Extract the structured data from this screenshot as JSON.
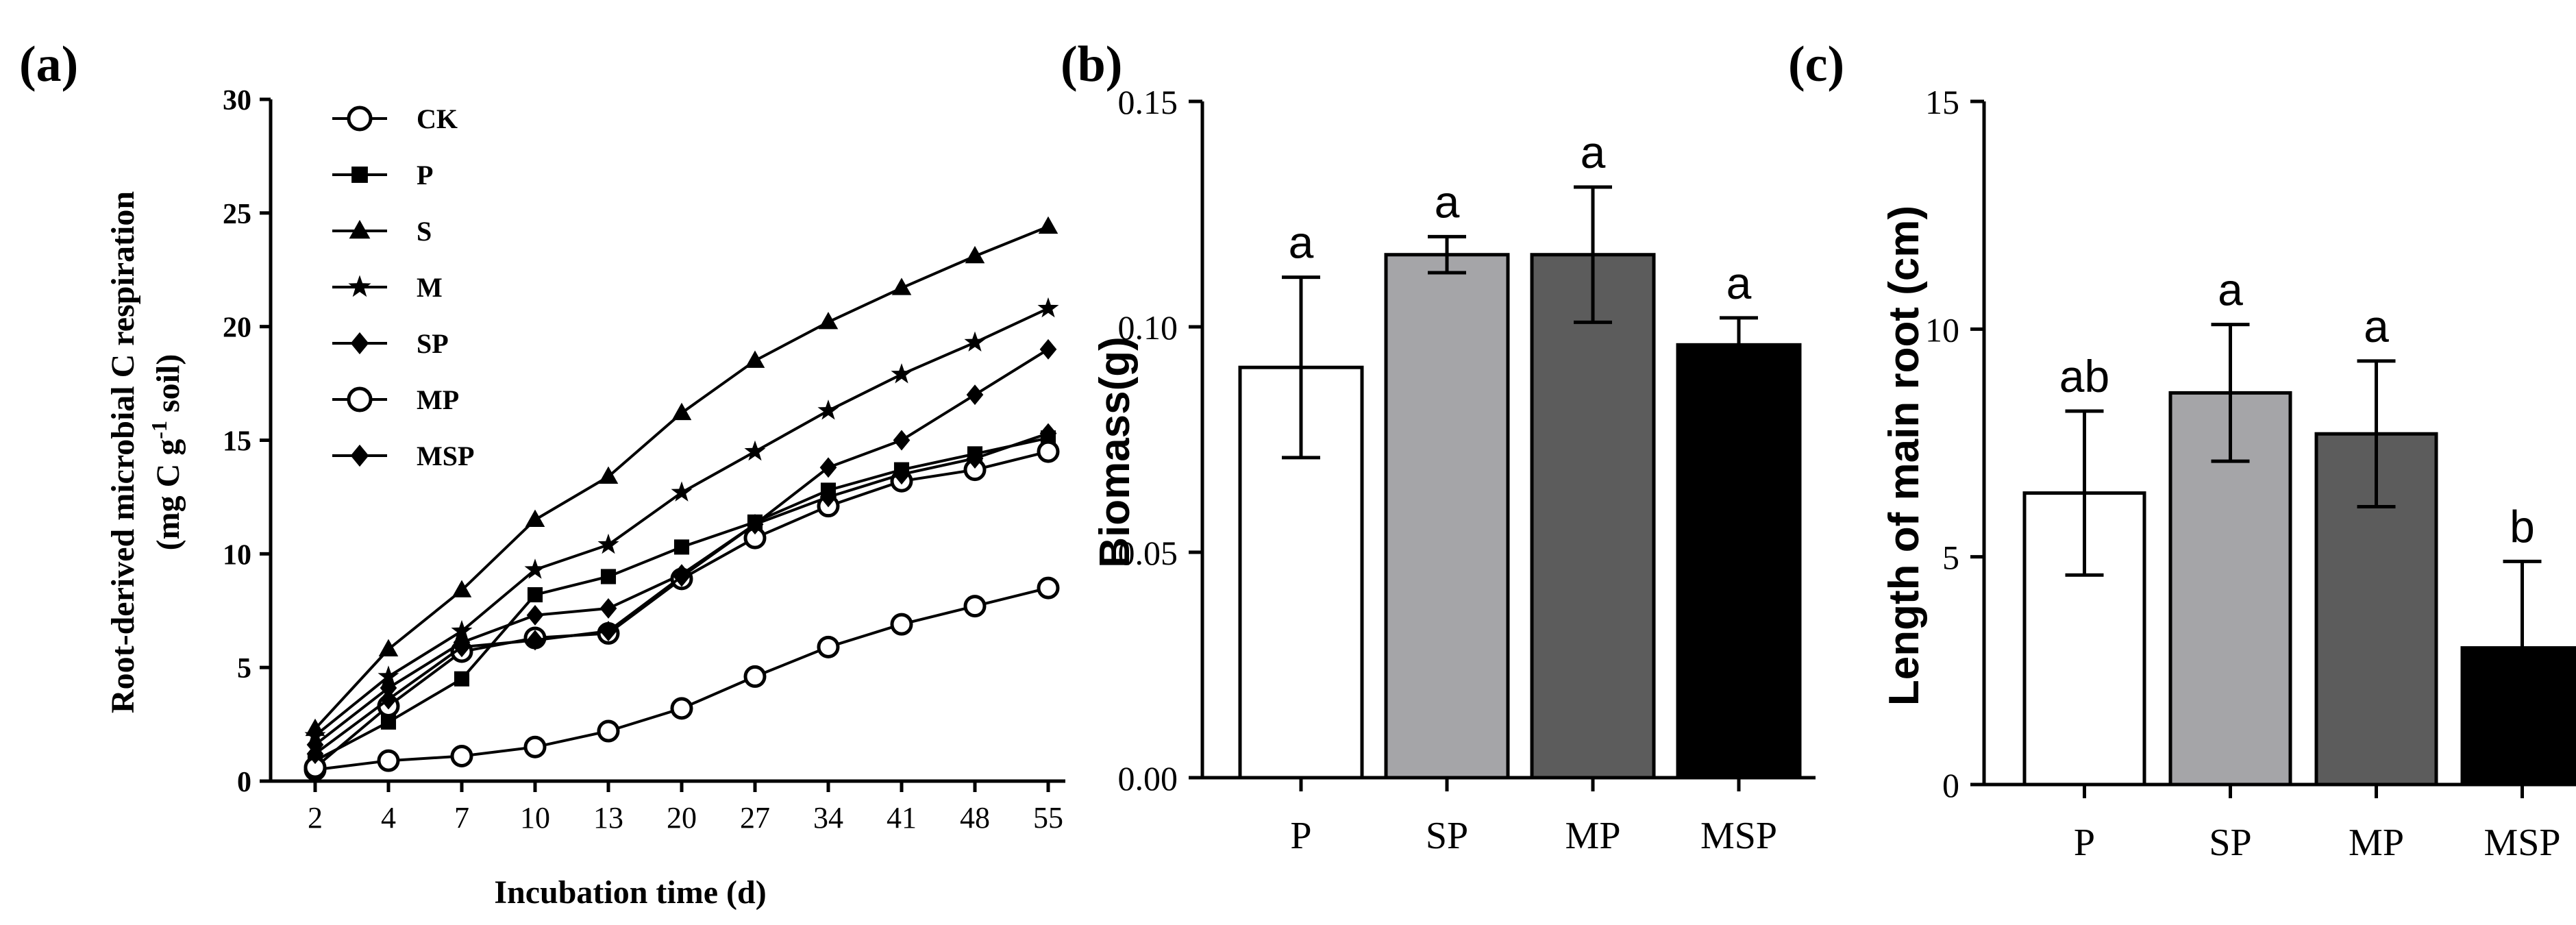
{
  "chart_data": [
    {
      "type": "line",
      "panel_label": "(a)",
      "xlabel": "Incubation time (d)",
      "ylabel_line1": "Root-derived microbial C respiration",
      "ylabel_line2_prefix": "(mg C g",
      "ylabel_line2_sup": "-1",
      "ylabel_line2_suffix": " soil)",
      "categories": [
        "2",
        "4",
        "7",
        "10",
        "13",
        "20",
        "27",
        "34",
        "41",
        "48",
        "55"
      ],
      "ylim": [
        0,
        30
      ],
      "yticks": [
        "0",
        "5",
        "10",
        "15",
        "20",
        "25",
        "30"
      ],
      "legend_position": "top-left",
      "series": [
        {
          "name": "CK",
          "marker": "circle",
          "values": [
            0.5,
            0.9,
            1.1,
            1.5,
            2.2,
            3.2,
            4.6,
            5.9,
            6.9,
            7.7,
            8.5
          ]
        },
        {
          "name": "P",
          "marker": "square",
          "values": [
            0.9,
            2.6,
            4.5,
            8.2,
            9.0,
            10.3,
            11.4,
            12.8,
            13.7,
            14.4,
            15.1
          ]
        },
        {
          "name": "S",
          "marker": "triangle",
          "values": [
            2.3,
            5.8,
            8.4,
            11.5,
            13.4,
            16.2,
            18.5,
            20.2,
            21.7,
            23.1,
            24.4
          ]
        },
        {
          "name": "M",
          "marker": "star",
          "values": [
            2.0,
            4.6,
            6.6,
            9.3,
            10.4,
            12.7,
            14.5,
            16.3,
            17.9,
            19.3,
            20.8
          ]
        },
        {
          "name": "SP",
          "marker": "diamond",
          "values": [
            1.6,
            4.1,
            6.1,
            7.3,
            7.6,
            9.1,
            11.3,
            13.8,
            15.0,
            17.0,
            19.0
          ]
        },
        {
          "name": "MP",
          "marker": "circle",
          "values": [
            0.6,
            3.3,
            5.7,
            6.3,
            6.5,
            8.9,
            10.7,
            12.1,
            13.2,
            13.7,
            14.5
          ]
        },
        {
          "name": "MSP",
          "marker": "diamond",
          "values": [
            1.2,
            3.6,
            5.9,
            6.2,
            6.6,
            9.0,
            11.3,
            12.5,
            13.5,
            14.2,
            15.3
          ]
        }
      ]
    },
    {
      "type": "bar",
      "panel_label": "(b)",
      "ylabel": "Biomass(g)",
      "xlabel": "",
      "categories": [
        "P",
        "SP",
        "MP",
        "MSP"
      ],
      "values": [
        0.091,
        0.116,
        0.116,
        0.096
      ],
      "errors": [
        0.02,
        0.004,
        0.015,
        0.006
      ],
      "significance": [
        "a",
        "a",
        "a",
        "a"
      ],
      "bar_colors": [
        "#ffffff",
        "#a5a5a8",
        "#5c5c5c",
        "#000000"
      ],
      "ylim": [
        0,
        0.15
      ],
      "yticks": [
        "0.00",
        "0.05",
        "0.10",
        "0.15"
      ]
    },
    {
      "type": "bar",
      "panel_label": "(c)",
      "ylabel": "Length of main root (cm)",
      "xlabel": "",
      "categories": [
        "P",
        "SP",
        "MP",
        "MSP"
      ],
      "values": [
        6.4,
        8.6,
        7.7,
        3.0
      ],
      "errors": [
        1.8,
        1.5,
        1.6,
        1.9
      ],
      "significance": [
        "ab",
        "a",
        "a",
        "b"
      ],
      "bar_colors": [
        "#ffffff",
        "#a5a5a8",
        "#5c5c5c",
        "#000000"
      ],
      "ylim": [
        0,
        15
      ],
      "yticks": [
        "0",
        "5",
        "10",
        "15"
      ]
    }
  ]
}
